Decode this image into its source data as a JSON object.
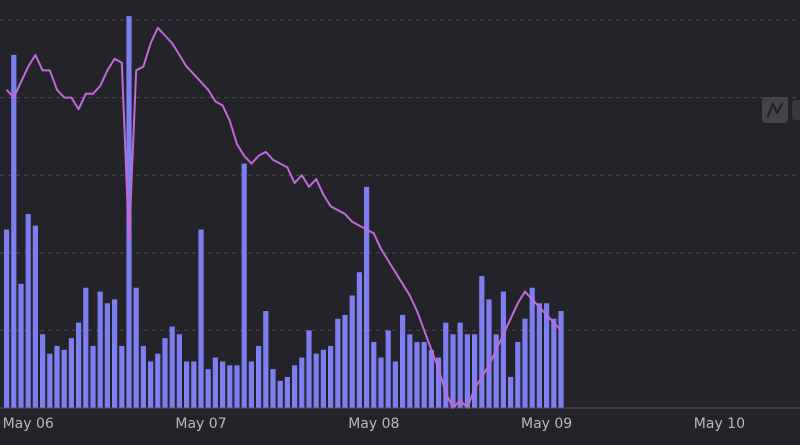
{
  "chart_data": {
    "type": "bar",
    "grid": true,
    "ylim": [
      0,
      100
    ],
    "colors": {
      "background": "#24232a",
      "bars": "#7d7ff0",
      "line": "#c06ad8",
      "grid": "#4a4954",
      "axis_text": "#b9b8c2"
    },
    "x_ticks": [
      {
        "label": "May 06",
        "index": 3
      },
      {
        "label": "May 07",
        "index": 27
      },
      {
        "label": "May 08",
        "index": 51
      },
      {
        "label": "May 09",
        "index": 75
      },
      {
        "label": "May 10",
        "index": 99
      }
    ],
    "series": [
      {
        "type": "bar",
        "values": [
          46,
          91,
          32,
          50,
          47,
          19,
          14,
          16,
          15,
          18,
          22,
          31,
          16,
          30,
          27,
          28,
          16,
          101,
          31,
          16,
          12,
          14,
          18,
          21,
          19,
          12,
          12,
          46,
          10,
          13,
          12,
          11,
          11,
          63,
          12,
          16,
          25,
          10,
          7,
          8,
          11,
          13,
          20,
          14,
          15,
          16,
          23,
          24,
          29,
          35,
          57,
          17,
          13,
          20,
          12,
          24,
          19,
          17,
          17,
          15,
          13,
          22,
          19,
          22,
          19,
          19,
          34,
          28,
          19,
          30,
          8,
          17,
          23,
          31,
          27,
          27,
          23,
          25
        ]
      },
      {
        "type": "line",
        "values": [
          82,
          80,
          84,
          88,
          91,
          87,
          87,
          82,
          80,
          80,
          77,
          81,
          81,
          83,
          87,
          90,
          89,
          43,
          87,
          88,
          94,
          98,
          96,
          94,
          91,
          88,
          86,
          84,
          82,
          79,
          78,
          74,
          68,
          65,
          63,
          65,
          66,
          64,
          63,
          62,
          58,
          60,
          57,
          59,
          55,
          52,
          51,
          50,
          48,
          47,
          46,
          45,
          41,
          38,
          35,
          32,
          29,
          25,
          20,
          15,
          10,
          4,
          0,
          2,
          0,
          5,
          8,
          11,
          15,
          19,
          23,
          27,
          30,
          28,
          26,
          24,
          22,
          20
        ]
      }
    ]
  }
}
